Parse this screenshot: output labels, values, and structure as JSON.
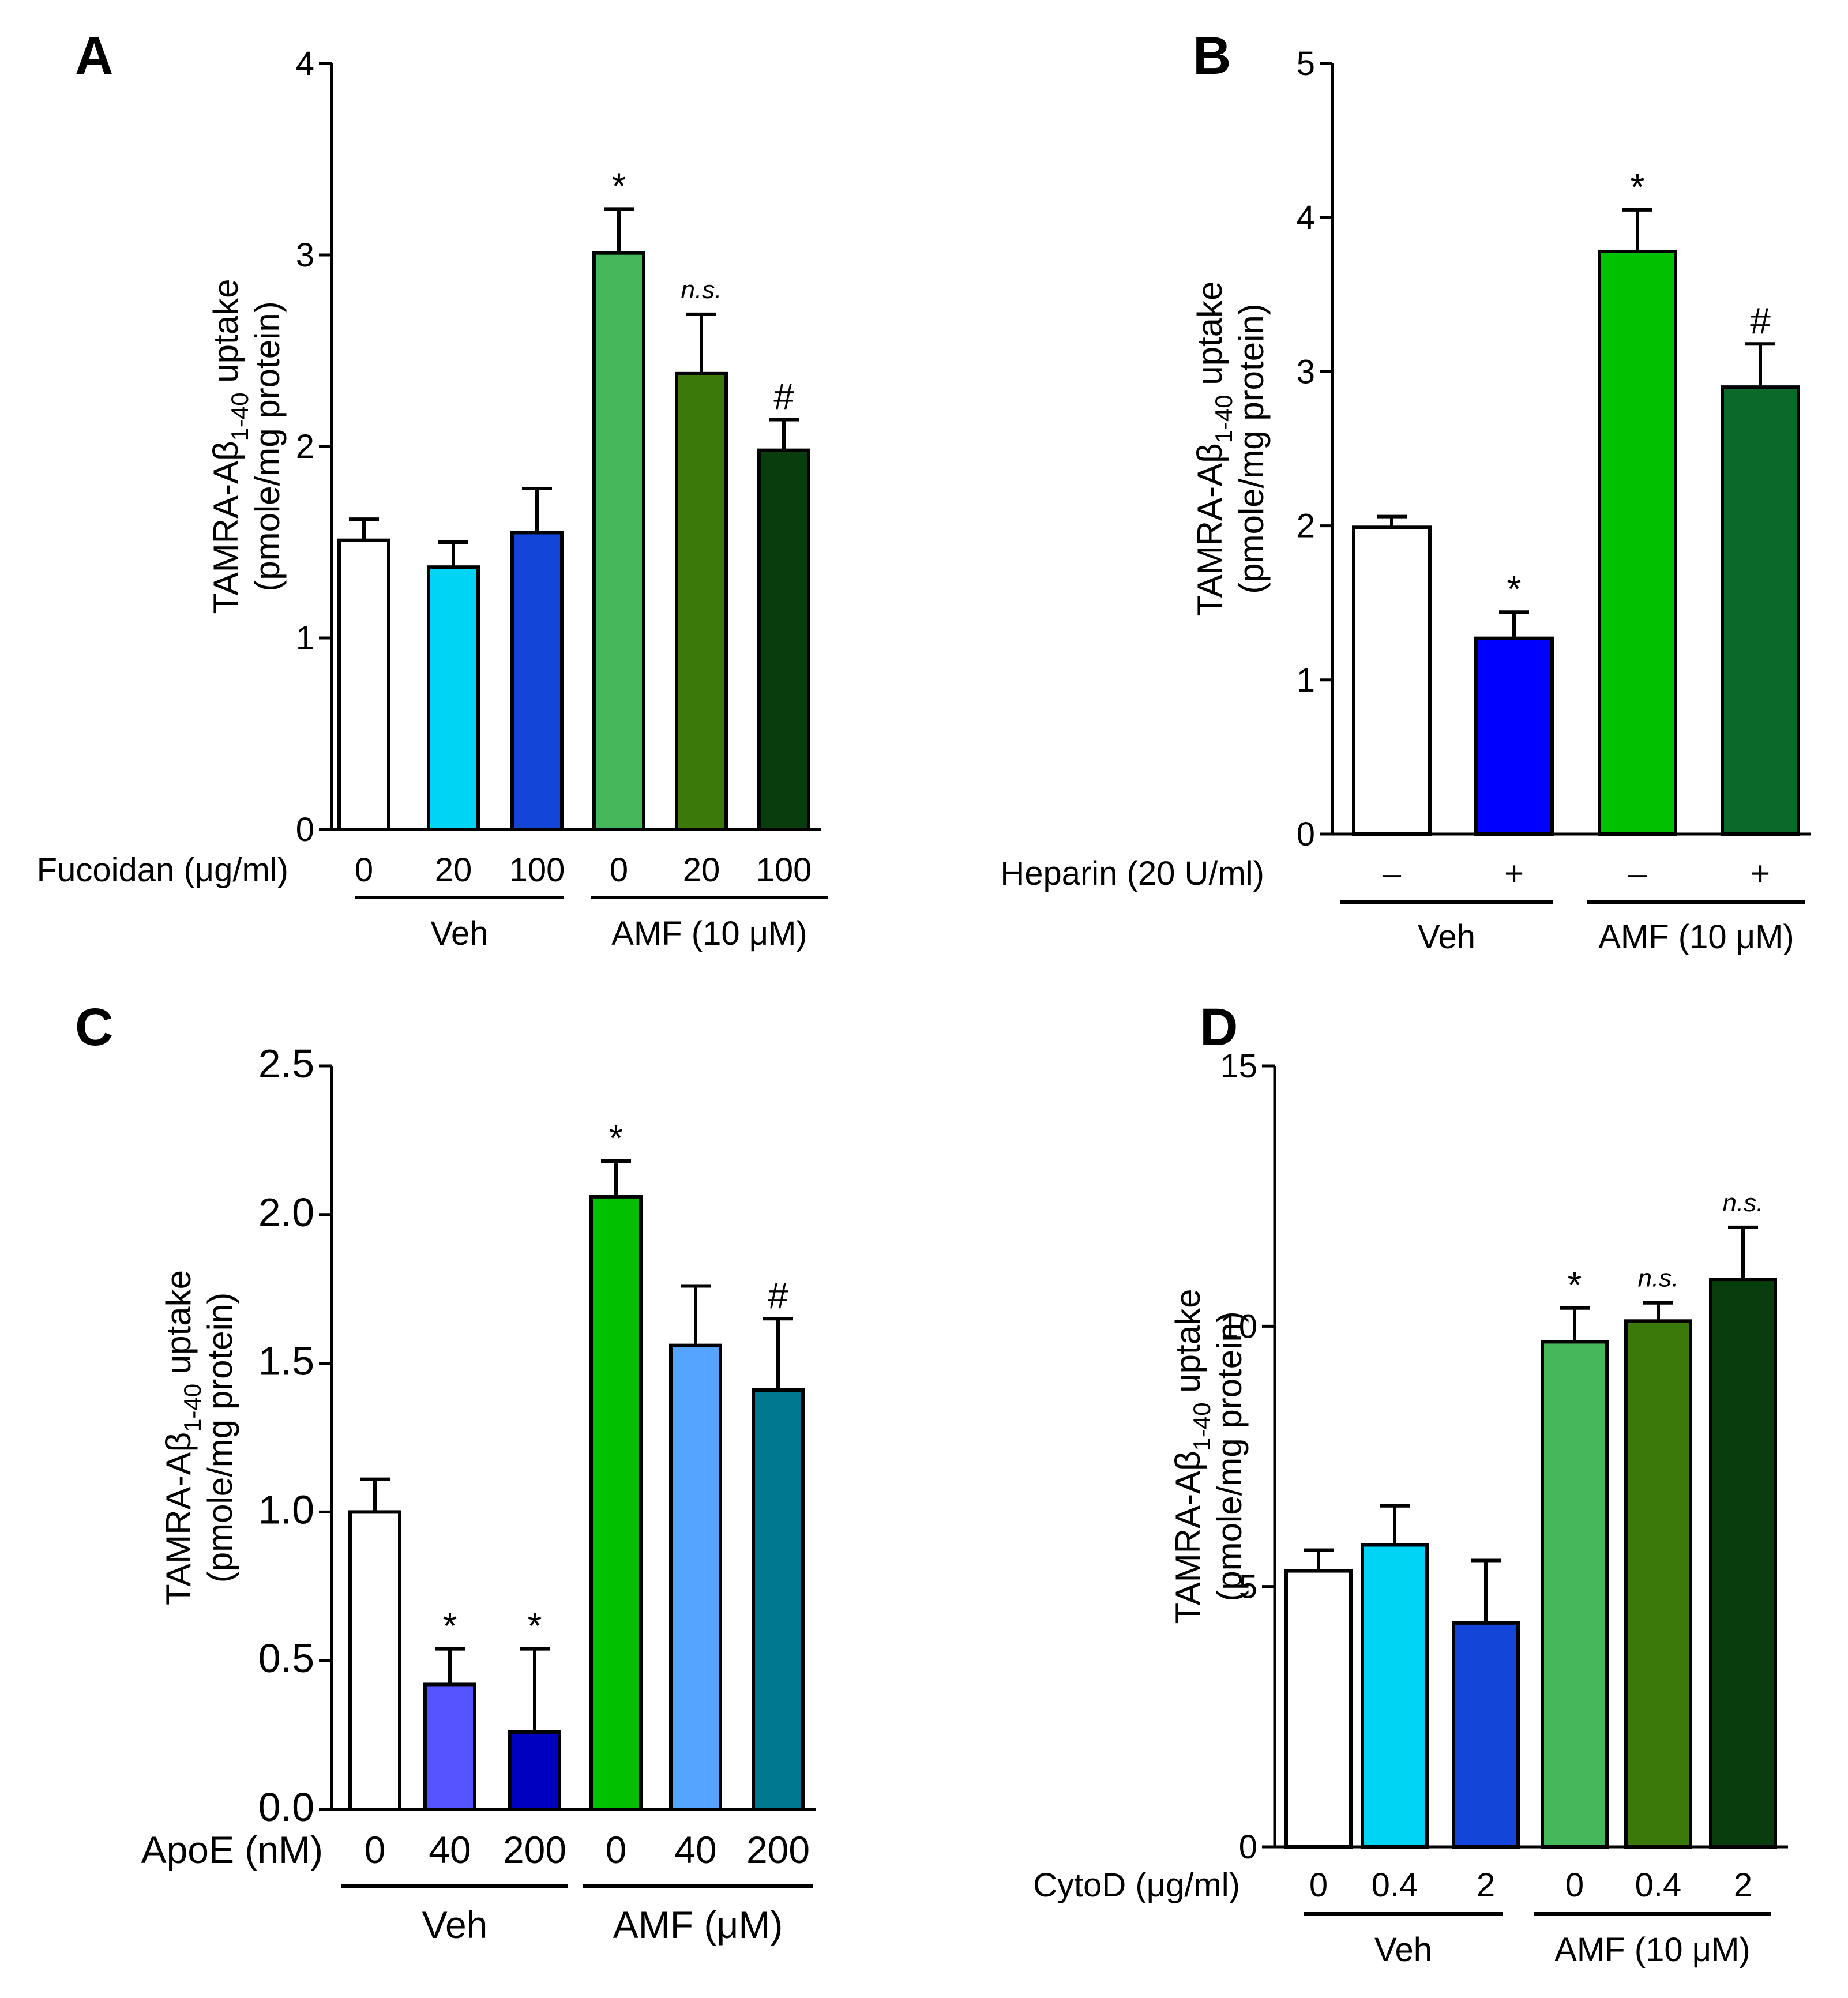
{
  "chart_data": [
    {
      "panel": "A",
      "type": "bar",
      "ylabel_line1": "TAMRA-Aβ",
      "ylabel_sub": "1-40",
      "ylabel_line1_end": " uptake",
      "ylabel_line2": "(pmole/mg protein)",
      "ylim": [
        0,
        4
      ],
      "yticks": [
        "0",
        "1",
        "2",
        "3",
        "4"
      ],
      "ytick_values": [
        0,
        1,
        2,
        3,
        4
      ],
      "factor_label": "Fucoidan (μg/ml)",
      "categories": [
        "0",
        "20",
        "100",
        "0",
        "20",
        "100"
      ],
      "values": [
        1.51,
        1.37,
        1.55,
        3.01,
        2.38,
        1.98
      ],
      "errors": [
        0.11,
        0.13,
        0.23,
        0.23,
        0.31,
        0.16
      ],
      "colors": [
        "#ffffff",
        "#00d4f5",
        "#1346d8",
        "#44b85a",
        "#3a7a0a",
        "#083e0e"
      ],
      "annotations": [
        "",
        "",
        "",
        "*",
        "n.s.",
        "#"
      ],
      "groups": [
        {
          "label": "Veh",
          "from": 0,
          "to": 2
        },
        {
          "label": "AMF (10 μM)",
          "from": 3,
          "to": 5
        }
      ]
    },
    {
      "panel": "B",
      "type": "bar",
      "ylabel_line1": "TAMRA-Aβ",
      "ylabel_sub": "1-40",
      "ylabel_line1_end": " uptake",
      "ylabel_line2": "(pmole/mg protein)",
      "ylim": [
        0,
        5
      ],
      "yticks": [
        "0",
        "1",
        "2",
        "3",
        "4",
        "5"
      ],
      "ytick_values": [
        0,
        1,
        2,
        3,
        4,
        5
      ],
      "factor_label": "Heparin (20 U/ml)",
      "categories": [
        "–",
        "+",
        "–",
        "+"
      ],
      "values": [
        1.99,
        1.27,
        3.78,
        2.9
      ],
      "errors": [
        0.07,
        0.17,
        0.27,
        0.28
      ],
      "colors": [
        "#ffffff",
        "#0000ff",
        "#00c000",
        "#0b6a2a"
      ],
      "annotations": [
        "",
        "*",
        "*",
        "#"
      ],
      "groups": [
        {
          "label": "Veh",
          "from": 0,
          "to": 1
        },
        {
          "label": "AMF (10 μM)",
          "from": 2,
          "to": 3
        }
      ]
    },
    {
      "panel": "C",
      "type": "bar",
      "ylabel_line1": "TAMRA-Aβ",
      "ylabel_sub": "1-40",
      "ylabel_line1_end": " uptake",
      "ylabel_line2": "(pmole/mg protein)",
      "ylim": [
        0,
        2.5
      ],
      "yticks": [
        "0.0",
        "0.5",
        "1.0",
        "1.5",
        "2.0",
        "2.5"
      ],
      "ytick_values": [
        0,
        0.5,
        1,
        1.5,
        2,
        2.5
      ],
      "factor_label": "ApoE (nM)",
      "categories": [
        "0",
        "40",
        "200",
        "0",
        "40",
        "200"
      ],
      "values": [
        1.0,
        0.42,
        0.26,
        2.06,
        1.56,
        1.41
      ],
      "errors": [
        0.11,
        0.12,
        0.28,
        0.12,
        0.2,
        0.24
      ],
      "colors": [
        "#ffffff",
        "#5555ff",
        "#0000c0",
        "#00c000",
        "#55a5ff",
        "#007890"
      ],
      "annotations": [
        "",
        "*",
        "*",
        "*",
        "",
        "#"
      ],
      "groups": [
        {
          "label": "Veh",
          "from": 0,
          "to": 2
        },
        {
          "label": "AMF (μM)",
          "from": 3,
          "to": 5
        }
      ]
    },
    {
      "panel": "D",
      "type": "bar",
      "ylabel_line1": "TAMRA-Aβ",
      "ylabel_sub": "1-40",
      "ylabel_line1_end": " uptake",
      "ylabel_line2": "(pmole/mg protein)",
      "ylim": [
        0,
        15
      ],
      "yticks": [
        "0",
        "5",
        "10",
        "15"
      ],
      "ytick_values": [
        0,
        5,
        10,
        15
      ],
      "factor_label": "CytoD (μg/ml)",
      "categories": [
        "0",
        "0.4",
        "2",
        "0",
        "0.4",
        "2"
      ],
      "values": [
        5.3,
        5.8,
        4.3,
        9.7,
        10.1,
        10.9
      ],
      "errors": [
        0.4,
        0.75,
        1.2,
        0.65,
        0.35,
        1.0
      ],
      "colors": [
        "#ffffff",
        "#00d4f5",
        "#1346d8",
        "#44b85a",
        "#3a7a0a",
        "#083e0e"
      ],
      "annotations": [
        "",
        "",
        "",
        "*",
        "n.s.",
        "n.s."
      ],
      "groups": [
        {
          "label": "Veh",
          "from": 0,
          "to": 2
        },
        {
          "label": "AMF (10 μM)",
          "from": 3,
          "to": 5
        }
      ]
    }
  ]
}
